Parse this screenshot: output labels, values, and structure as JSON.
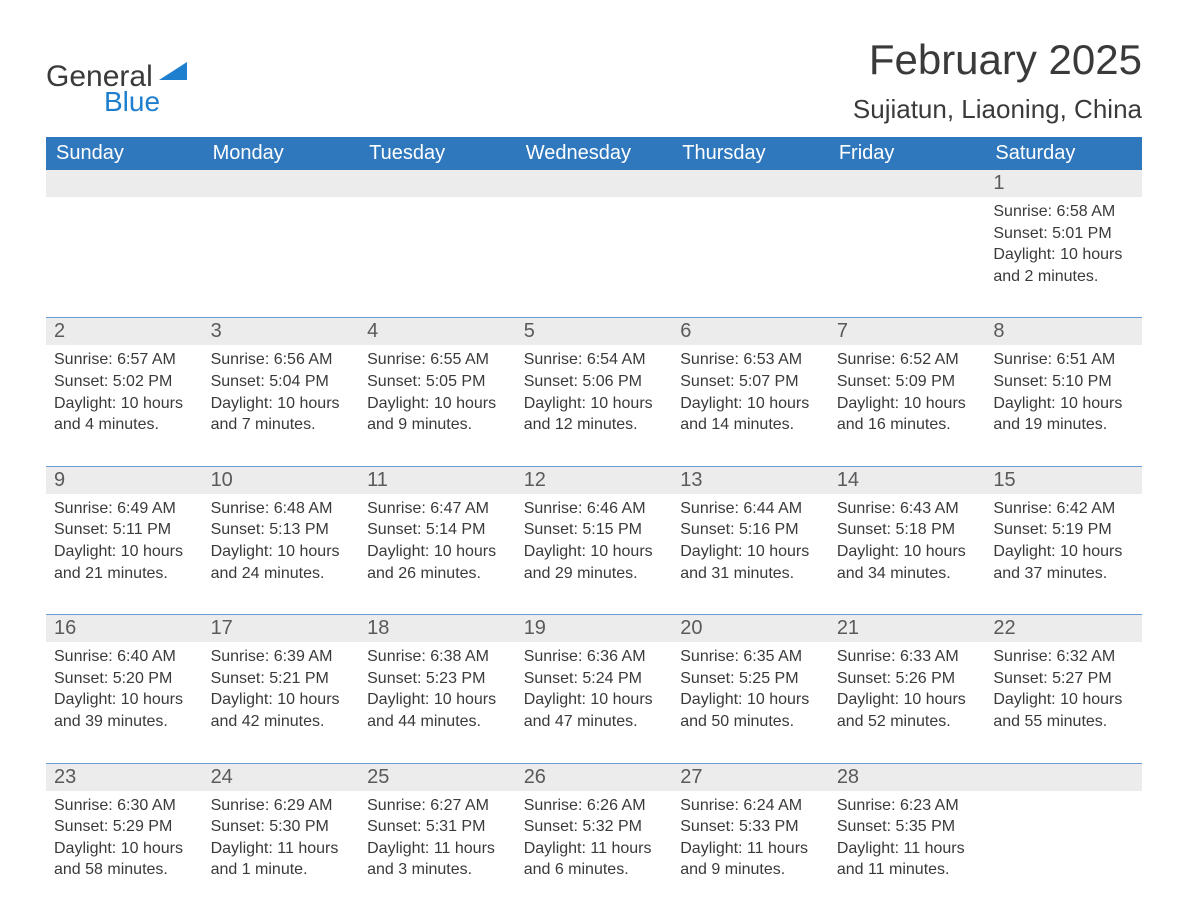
{
  "logo": {
    "word1": "General",
    "word2": "Blue"
  },
  "title": "February 2025",
  "location": "Sujiatun, Liaoning, China",
  "colors": {
    "header_bg": "#2f78bd",
    "header_text": "#ffffff",
    "daynum_bg": "#ececec",
    "sep_line": "#6a9bd4",
    "body_text": "#3a3a3a",
    "logo_blue": "#1f7fcf"
  },
  "day_headers": [
    "Sunday",
    "Monday",
    "Tuesday",
    "Wednesday",
    "Thursday",
    "Friday",
    "Saturday"
  ],
  "weeks": [
    [
      null,
      null,
      null,
      null,
      null,
      null,
      {
        "n": "1",
        "sr": "6:58 AM",
        "ss": "5:01 PM",
        "dl": "10 hours and 2 minutes."
      }
    ],
    [
      {
        "n": "2",
        "sr": "6:57 AM",
        "ss": "5:02 PM",
        "dl": "10 hours and 4 minutes."
      },
      {
        "n": "3",
        "sr": "6:56 AM",
        "ss": "5:04 PM",
        "dl": "10 hours and 7 minutes."
      },
      {
        "n": "4",
        "sr": "6:55 AM",
        "ss": "5:05 PM",
        "dl": "10 hours and 9 minutes."
      },
      {
        "n": "5",
        "sr": "6:54 AM",
        "ss": "5:06 PM",
        "dl": "10 hours and 12 minutes."
      },
      {
        "n": "6",
        "sr": "6:53 AM",
        "ss": "5:07 PM",
        "dl": "10 hours and 14 minutes."
      },
      {
        "n": "7",
        "sr": "6:52 AM",
        "ss": "5:09 PM",
        "dl": "10 hours and 16 minutes."
      },
      {
        "n": "8",
        "sr": "6:51 AM",
        "ss": "5:10 PM",
        "dl": "10 hours and 19 minutes."
      }
    ],
    [
      {
        "n": "9",
        "sr": "6:49 AM",
        "ss": "5:11 PM",
        "dl": "10 hours and 21 minutes."
      },
      {
        "n": "10",
        "sr": "6:48 AM",
        "ss": "5:13 PM",
        "dl": "10 hours and 24 minutes."
      },
      {
        "n": "11",
        "sr": "6:47 AM",
        "ss": "5:14 PM",
        "dl": "10 hours and 26 minutes."
      },
      {
        "n": "12",
        "sr": "6:46 AM",
        "ss": "5:15 PM",
        "dl": "10 hours and 29 minutes."
      },
      {
        "n": "13",
        "sr": "6:44 AM",
        "ss": "5:16 PM",
        "dl": "10 hours and 31 minutes."
      },
      {
        "n": "14",
        "sr": "6:43 AM",
        "ss": "5:18 PM",
        "dl": "10 hours and 34 minutes."
      },
      {
        "n": "15",
        "sr": "6:42 AM",
        "ss": "5:19 PM",
        "dl": "10 hours and 37 minutes."
      }
    ],
    [
      {
        "n": "16",
        "sr": "6:40 AM",
        "ss": "5:20 PM",
        "dl": "10 hours and 39 minutes."
      },
      {
        "n": "17",
        "sr": "6:39 AM",
        "ss": "5:21 PM",
        "dl": "10 hours and 42 minutes."
      },
      {
        "n": "18",
        "sr": "6:38 AM",
        "ss": "5:23 PM",
        "dl": "10 hours and 44 minutes."
      },
      {
        "n": "19",
        "sr": "6:36 AM",
        "ss": "5:24 PM",
        "dl": "10 hours and 47 minutes."
      },
      {
        "n": "20",
        "sr": "6:35 AM",
        "ss": "5:25 PM",
        "dl": "10 hours and 50 minutes."
      },
      {
        "n": "21",
        "sr": "6:33 AM",
        "ss": "5:26 PM",
        "dl": "10 hours and 52 minutes."
      },
      {
        "n": "22",
        "sr": "6:32 AM",
        "ss": "5:27 PM",
        "dl": "10 hours and 55 minutes."
      }
    ],
    [
      {
        "n": "23",
        "sr": "6:30 AM",
        "ss": "5:29 PM",
        "dl": "10 hours and 58 minutes."
      },
      {
        "n": "24",
        "sr": "6:29 AM",
        "ss": "5:30 PM",
        "dl": "11 hours and 1 minute."
      },
      {
        "n": "25",
        "sr": "6:27 AM",
        "ss": "5:31 PM",
        "dl": "11 hours and 3 minutes."
      },
      {
        "n": "26",
        "sr": "6:26 AM",
        "ss": "5:32 PM",
        "dl": "11 hours and 6 minutes."
      },
      {
        "n": "27",
        "sr": "6:24 AM",
        "ss": "5:33 PM",
        "dl": "11 hours and 9 minutes."
      },
      {
        "n": "28",
        "sr": "6:23 AM",
        "ss": "5:35 PM",
        "dl": "11 hours and 11 minutes."
      },
      null
    ]
  ],
  "labels": {
    "sunrise": "Sunrise:",
    "sunset": "Sunset:",
    "daylight": "Daylight:"
  }
}
